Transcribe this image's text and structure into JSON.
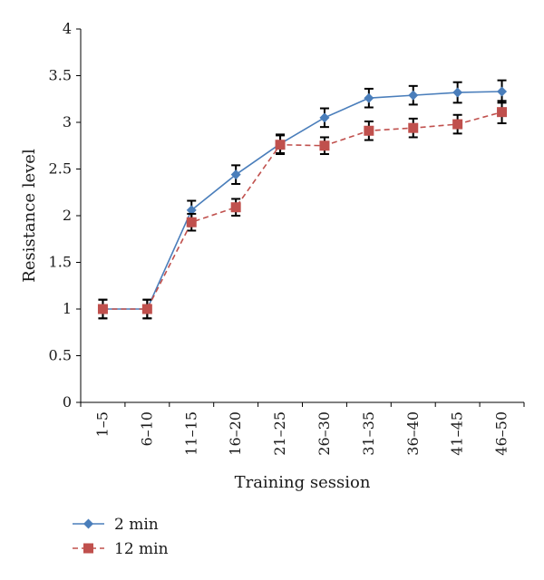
{
  "chart_data": {
    "type": "line",
    "title": "",
    "xlabel": "Training session",
    "ylabel": "Resistance level",
    "ylim": [
      0,
      4
    ],
    "yticks": [
      "0",
      "0.5",
      "1",
      "1.5",
      "2",
      "2.5",
      "3",
      "3.5",
      "4"
    ],
    "grid": false,
    "legend_position": "bottom-left",
    "categories": [
      "1–5",
      "6–10",
      "11–15",
      "16–20",
      "21–25",
      "26–30",
      "31–35",
      "36–40",
      "41–45",
      "46–50"
    ],
    "series": [
      {
        "name": "2 min",
        "color": "#4a7ebb",
        "marker": "diamond",
        "line_style": "solid",
        "values": [
          1.0,
          1.0,
          2.06,
          2.44,
          2.77,
          3.05,
          3.26,
          3.29,
          3.32,
          3.33
        ],
        "errors": [
          0.1,
          0.1,
          0.1,
          0.1,
          0.1,
          0.1,
          0.1,
          0.1,
          0.11,
          0.12
        ]
      },
      {
        "name": "12 min",
        "color": "#c0504d",
        "marker": "square",
        "line_style": "dashed",
        "values": [
          1.0,
          1.0,
          1.93,
          2.09,
          2.76,
          2.75,
          2.91,
          2.94,
          2.98,
          3.11
        ],
        "errors": [
          0.1,
          0.1,
          0.09,
          0.09,
          0.1,
          0.09,
          0.1,
          0.1,
          0.1,
          0.12
        ]
      }
    ]
  }
}
